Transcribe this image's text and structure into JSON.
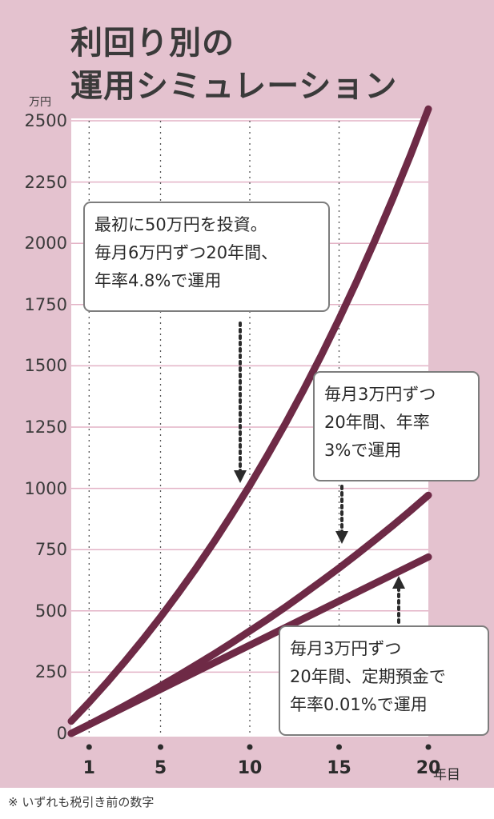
{
  "chart_data": {
    "type": "line",
    "title": [
      "利回り別の",
      "運用シミュレーション"
    ],
    "ylabel": "万円",
    "xlabel": "年目",
    "ylim": [
      0,
      2500
    ],
    "xlim": [
      0,
      20
    ],
    "y_ticks": [
      "0",
      "250",
      "500",
      "750",
      "1000",
      "1250",
      "1500",
      "1750",
      "2000",
      "2250",
      "2500"
    ],
    "x_ticks": [
      1,
      5,
      10,
      15,
      20
    ],
    "x_tick_labels": [
      "1",
      "5",
      "10",
      "15",
      "20"
    ],
    "x_suffix": "年目",
    "grid": true,
    "series": [
      {
        "annotation": [
          "最初に50万円を投資。",
          "毎月6万円ずつ20年間、",
          "年率4.8%で運用"
        ],
        "x": [
          0,
          1,
          2,
          3,
          4,
          5,
          6,
          7,
          8,
          9,
          10,
          11,
          12,
          13,
          14,
          15,
          16,
          17,
          18,
          19,
          20
        ],
        "values": [
          50,
          127,
          208,
          293,
          382,
          475,
          573,
          675,
          782,
          895,
          1012,
          1136,
          1265,
          1400,
          1542,
          1691,
          1847,
          2010,
          2181,
          2360,
          2548
        ]
      },
      {
        "annotation": [
          "毎月3万円ずつ",
          "20年間、年率",
          "3%で運用"
        ],
        "x": [
          0,
          1,
          2,
          3,
          4,
          5,
          6,
          7,
          8,
          9,
          10,
          11,
          12,
          13,
          14,
          15,
          16,
          17,
          18,
          19,
          20
        ],
        "values": [
          0,
          36,
          74,
          113,
          153,
          194,
          236,
          280,
          324,
          370,
          418,
          466,
          516,
          568,
          621,
          675,
          731,
          789,
          848,
          909,
          972
        ]
      },
      {
        "annotation": [
          "毎月3万円ずつ",
          "20年間、定期預金で",
          "年率0.01%で運用"
        ],
        "x": [
          0,
          20
        ],
        "values": [
          0,
          720
        ]
      }
    ],
    "colors": {
      "background": "#e4c2cf",
      "plot_area": "#ffffff",
      "line": "#6e2a46",
      "grid": "#e3b3c6",
      "vertical_grid": "#555555",
      "arrow": "#2b2b2b"
    }
  },
  "footnote": "※ いずれも税引き前の数字"
}
